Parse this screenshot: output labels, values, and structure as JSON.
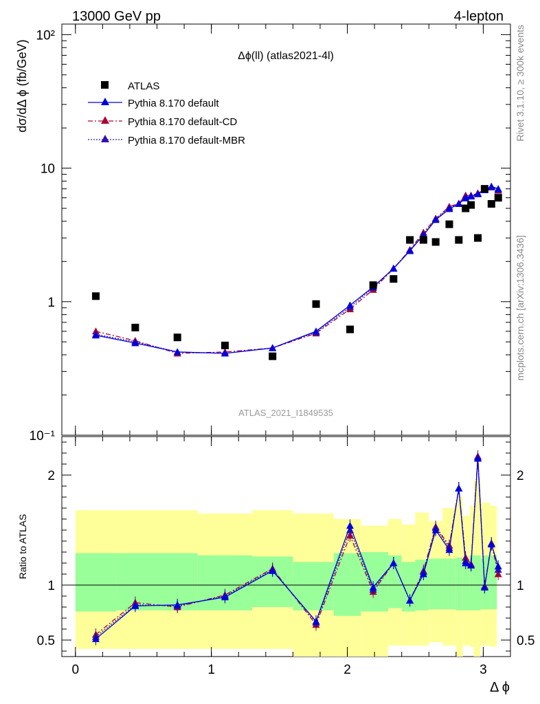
{
  "header": {
    "left": "13000 GeV pp",
    "right": "4-lepton"
  },
  "side_labels": {
    "rivet": "Rivet 3.1.10, ≥ 300k events",
    "mcplots": "mcplots.cern.ch [arXiv:1306.3436]"
  },
  "chart_data": {
    "type": "scatter",
    "title": "Δϕ(ll) (atlas2021-4l)",
    "watermark": "ATLAS_2021_I1849535",
    "xlabel": "Δ ϕ",
    "ylabel": "dσ/dΔ ϕ (fb/GeV)",
    "ratio_ylabel": "Ratio to ATLAS",
    "xlim": [
      -0.1,
      3.2
    ],
    "ylim": [
      0.1,
      120
    ],
    "yscale": "log",
    "ratio_ylim": [
      0.35,
      2.35
    ],
    "x_ticks": [
      "0",
      "1",
      "2",
      "3"
    ],
    "y_ticks": [
      "10⁻¹",
      "1",
      "10",
      "10²"
    ],
    "ratio_ticks": [
      "0.5",
      "1",
      "2"
    ],
    "legend_position": "top-left",
    "x": [
      0.15,
      0.44,
      0.75,
      1.1,
      1.45,
      1.77,
      2.02,
      2.19,
      2.34,
      2.46,
      2.56,
      2.65,
      2.75,
      2.82,
      2.87,
      2.91,
      2.96,
      3.01,
      3.06,
      3.11
    ],
    "series": [
      {
        "name": "ATLAS",
        "color": "#000000",
        "marker": "square",
        "values": [
          1.1,
          0.64,
          0.54,
          0.47,
          0.39,
          0.96,
          0.62,
          1.33,
          1.48,
          2.9,
          2.9,
          2.8,
          3.8,
          2.9,
          5.0,
          5.3,
          3.0,
          7.0,
          5.4,
          6.0
        ]
      },
      {
        "name": "Pythia 8.170 default",
        "color": "#0000dd",
        "marker": "triangle",
        "line": "solid",
        "values": [
          0.56,
          0.49,
          0.42,
          0.41,
          0.45,
          0.6,
          0.94,
          1.29,
          1.77,
          2.4,
          3.15,
          4.1,
          4.95,
          5.4,
          5.95,
          6.15,
          6.4,
          6.85,
          7.3,
          7.0
        ]
      },
      {
        "name": "Pythia 8.170 default-CD",
        "color": "#aa0033",
        "marker": "triangle",
        "line": "dashdot",
        "values": [
          0.6,
          0.51,
          0.41,
          0.42,
          0.45,
          0.58,
          0.88,
          1.23,
          1.77,
          2.45,
          3.3,
          4.2,
          5.15,
          5.45,
          6.25,
          6.25,
          6.5,
          6.9,
          7.2,
          6.8
        ]
      },
      {
        "name": "Pythia 8.170 default-MBR",
        "color": "#3311aa",
        "marker": "triangle",
        "line": "dotted",
        "values": [
          0.57,
          0.5,
          0.42,
          0.41,
          0.45,
          0.59,
          0.91,
          1.27,
          1.78,
          2.42,
          3.2,
          4.15,
          5.05,
          5.4,
          6.1,
          6.2,
          6.45,
          6.9,
          7.2,
          6.9
        ]
      }
    ],
    "ratio_series": [
      {
        "name": "Pythia 8.170 default",
        "values": [
          0.51,
          0.81,
          0.82,
          0.89,
          1.13,
          0.67,
          1.54,
          0.98,
          1.2,
          0.86,
          1.1,
          1.5,
          1.32,
          1.88,
          1.2,
          1.18,
          2.15,
          0.98,
          1.37,
          1.17
        ]
      },
      {
        "name": "Pythia 8.170 default-CD",
        "values": [
          0.55,
          0.84,
          0.8,
          0.91,
          1.15,
          0.64,
          1.45,
          0.94,
          1.2,
          0.86,
          1.13,
          1.53,
          1.36,
          1.88,
          1.25,
          1.19,
          2.17,
          0.99,
          1.38,
          1.1
        ]
      },
      {
        "name": "Pythia 8.170 default-MBR",
        "values": [
          0.53,
          0.82,
          0.81,
          0.9,
          1.14,
          0.66,
          1.5,
          0.96,
          1.2,
          0.86,
          1.12,
          1.52,
          1.34,
          1.88,
          1.22,
          1.18,
          2.16,
          0.98,
          1.38,
          1.14
        ]
      }
    ],
    "uncertainty_bands": {
      "edges": [
        0.0,
        0.3,
        0.6,
        0.9,
        1.3,
        1.6,
        1.9,
        2.1,
        2.3,
        2.4,
        2.5,
        2.6,
        2.7,
        2.8,
        2.85,
        2.9,
        2.93,
        2.98,
        3.0,
        3.05,
        3.1
      ],
      "green_lo": [
        0.76,
        0.77,
        0.77,
        0.77,
        0.8,
        0.77,
        0.72,
        0.76,
        0.79,
        0.76,
        0.77,
        0.78,
        0.78,
        0.77,
        0.77,
        0.77,
        0.77,
        0.78,
        0.78,
        0.78
      ],
      "green_hi": [
        1.29,
        1.29,
        1.29,
        1.27,
        1.26,
        1.21,
        1.29,
        1.3,
        1.27,
        1.21,
        1.23,
        1.24,
        1.24,
        1.25,
        1.23,
        1.27,
        1.27,
        1.24,
        1.27,
        1.27
      ],
      "yellow_lo": [
        0.42,
        0.42,
        0.42,
        0.42,
        0.42,
        0.35,
        0.35,
        0.35,
        0.45,
        0.45,
        0.45,
        0.48,
        0.45,
        0.35,
        0.45,
        0.44,
        0.35,
        0.45,
        0.45,
        0.44
      ],
      "yellow_hi": [
        1.68,
        1.68,
        1.68,
        1.65,
        1.68,
        1.65,
        1.6,
        1.54,
        1.6,
        1.55,
        1.66,
        1.58,
        1.7,
        1.8,
        1.63,
        1.72,
        1.95,
        1.75,
        1.75,
        1.72
      ]
    }
  }
}
